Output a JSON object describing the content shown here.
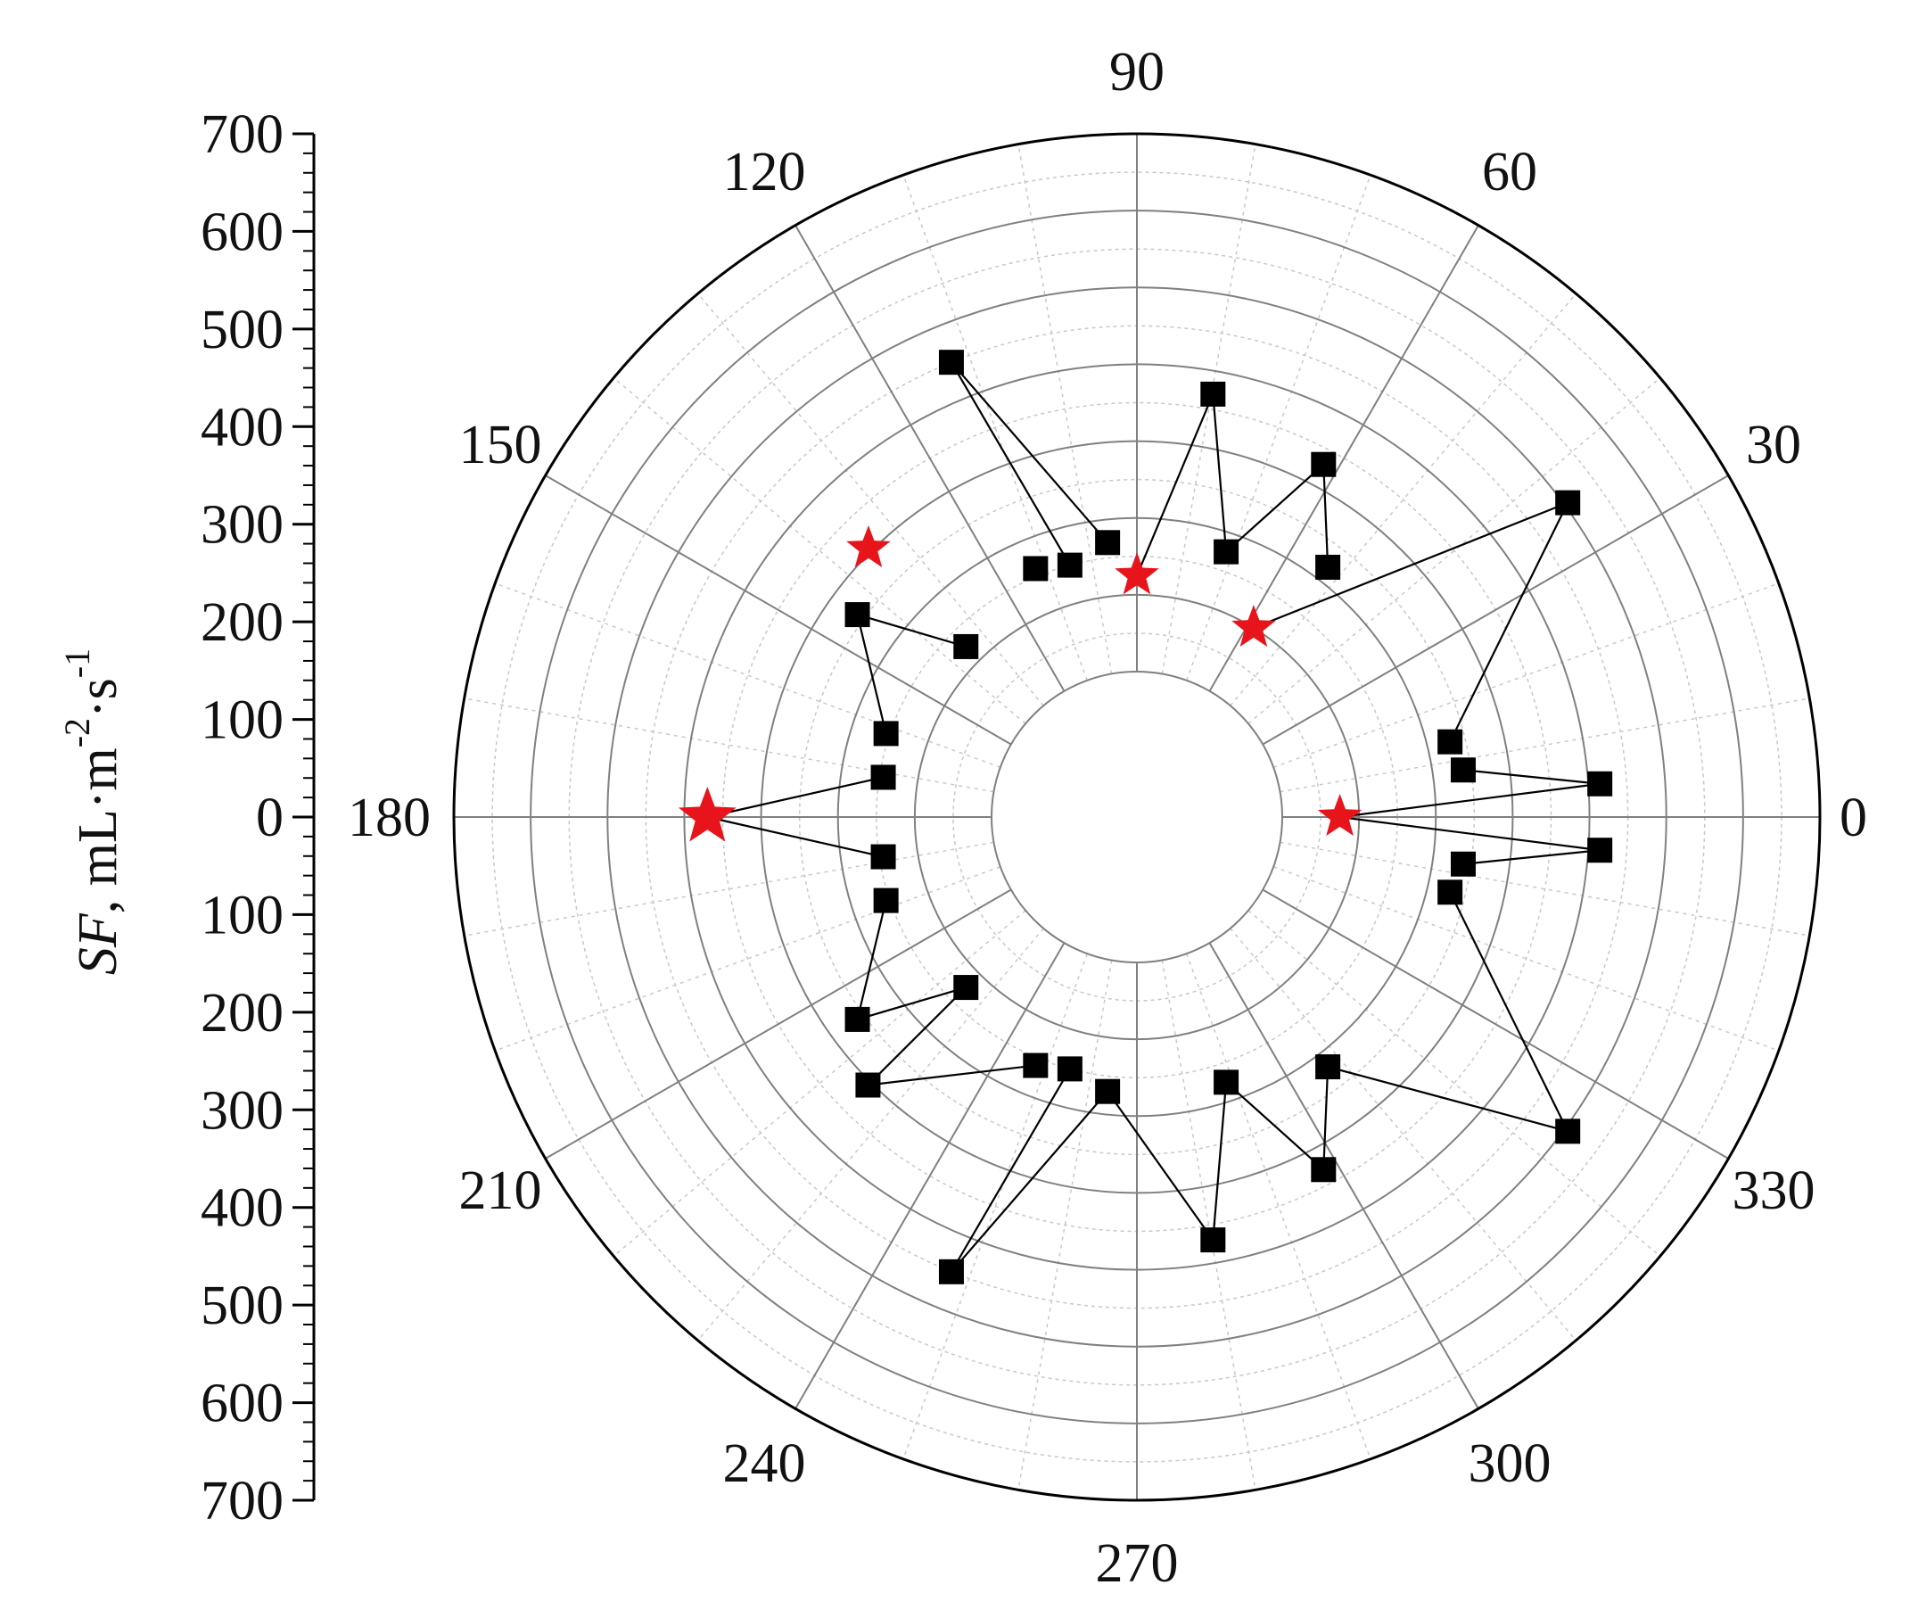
{
  "chart_data": {
    "type": "scatter",
    "subtype": "polar",
    "ylabel": {
      "italic": "SF",
      "rest": ", mL·m",
      "sup1": "-2",
      "mid": "·s",
      "sup2": "-1"
    },
    "radial_axis": {
      "ticks_upper": [
        "700",
        "600",
        "500",
        "400",
        "300",
        "200",
        "100",
        "0"
      ],
      "ticks_lower": [
        "100",
        "200",
        "300",
        "400",
        "500",
        "600",
        "700"
      ],
      "range": [
        0,
        700
      ],
      "inner_hole": 0,
      "major_step": 100,
      "minor_step": 50
    },
    "angular_axis": {
      "labels": [
        "0",
        "30",
        "60",
        "90",
        "120",
        "150",
        "180",
        "210",
        "240",
        "270",
        "300",
        "330"
      ],
      "spokes_every_deg": 30,
      "minor_every_deg": 10
    },
    "colors": {
      "square": "#000000",
      "star": "#e8141b",
      "grid": "#808080",
      "minor_grid": "#c8c8c8"
    },
    "series": [
      {
        "marker": "square",
        "points": [
          {
            "angle": 4.1,
            "r": 415
          },
          {
            "angle": 355.9,
            "r": 415
          },
          {
            "angle": 8.2,
            "r": 240
          },
          {
            "angle": 351.8,
            "r": 240
          },
          {
            "angle": 13.5,
            "r": 230
          },
          {
            "angle": 346.5,
            "r": 230
          },
          {
            "angle": 36.1,
            "r": 505
          },
          {
            "angle": 323.9,
            "r": 505
          },
          {
            "angle": 52.6,
            "r": 220
          },
          {
            "angle": 307.4,
            "r": 220
          },
          {
            "angle": 62.1,
            "r": 330
          },
          {
            "angle": 297.9,
            "r": 330
          },
          {
            "angle": 71.4,
            "r": 175
          },
          {
            "angle": 288.6,
            "r": 175
          },
          {
            "angle": 79.8,
            "r": 370
          },
          {
            "angle": 280.2,
            "r": 370
          },
          {
            "angle": 96.1,
            "r": 170
          },
          {
            "angle": 263.9,
            "r": 170
          },
          {
            "angle": 104.9,
            "r": 150
          },
          {
            "angle": 255.1,
            "r": 150
          },
          {
            "angle": 112.2,
            "r": 160
          },
          {
            "angle": 247.8,
            "r": 160
          },
          {
            "angle": 112.2,
            "r": 450
          },
          {
            "angle": 247.8,
            "r": 450
          },
          {
            "angle": 135.1,
            "r": 125
          },
          {
            "angle": 224.9,
            "r": 125
          },
          {
            "angle": 144.1,
            "r": 260
          },
          {
            "angle": 215.9,
            "r": 260
          },
          {
            "angle": 161.6,
            "r": 155
          },
          {
            "angle": 198.4,
            "r": 155
          },
          {
            "angle": 171.1,
            "r": 145
          },
          {
            "angle": 188.9,
            "r": 145
          }
        ]
      },
      {
        "marker": "star",
        "points": [
          {
            "angle": 0,
            "r": 75
          },
          {
            "angle": 58.3,
            "r": 100
          },
          {
            "angle": 90,
            "r": 125
          },
          {
            "angle": 135.0,
            "r": 305
          },
          {
            "angle": 180,
            "r": 370
          }
        ]
      }
    ],
    "connections": [
      [
        "s:4.1:415",
        "st:0:75"
      ],
      [
        "s:4.1:415",
        "s:8.2:240"
      ],
      [
        "s:355.9:415",
        "st:0:75"
      ],
      [
        "s:355.9:415",
        "s:351.8:240"
      ],
      [
        "s:36.1:505",
        "st:58.3:100"
      ],
      [
        "s:36.1:505",
        "s:13.5:230"
      ],
      [
        "s:323.9:505",
        "s:346.5:230"
      ],
      [
        "s:323.9:505",
        "s:307.4:220"
      ],
      [
        "s:62.1:330",
        "s:52.6:220"
      ],
      [
        "s:62.1:330",
        "s:71.4:175"
      ],
      [
        "s:297.9:330",
        "s:288.6:175"
      ],
      [
        "s:297.9:330",
        "s:307.4:220"
      ],
      [
        "s:79.8:370",
        "s:71.4:175"
      ],
      [
        "s:79.8:370",
        "st:90:125"
      ],
      [
        "s:280.2:370",
        "s:288.6:175"
      ],
      [
        "s:280.2:370",
        "s:263.9:170"
      ],
      [
        "s:112.2:450",
        "s:96.1:170"
      ],
      [
        "s:112.2:450",
        "s:104.9:150"
      ],
      [
        "s:247.8:450",
        "s:255.1:150"
      ],
      [
        "s:247.8:450",
        "s:263.9:170"
      ],
      [
        "st:135.0:305",
        "s:112.2:160"
      ],
      [
        "st:135.0:305",
        "s:135.1:125"
      ],
      [
        "s:144.1:260",
        "s:135.1:125"
      ],
      [
        "s:144.1:260",
        "s:161.6:155"
      ],
      [
        "s:215.9:260",
        "s:224.9:125"
      ],
      [
        "s:215.9:260",
        "s:198.4:155"
      ],
      [
        "st:180:370",
        "s:171.1:145"
      ],
      [
        "st:180:370",
        "s:188.9:145"
      ],
      [
        "s:224.9:305",
        "s:247.8:160"
      ],
      [
        "s:224.9:305",
        "s:224.9:125"
      ]
    ],
    "extra_squares": [
      {
        "angle": 224.9,
        "r": 305
      }
    ]
  }
}
